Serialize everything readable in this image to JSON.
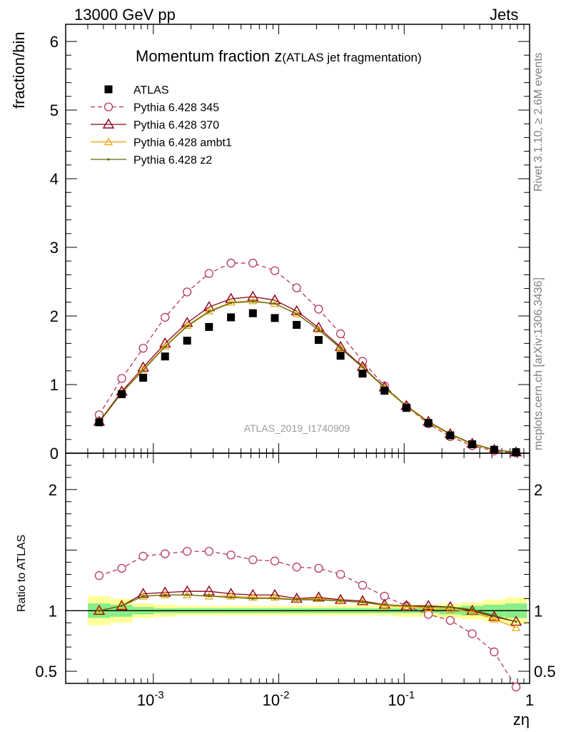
{
  "header": {
    "left": "13000 GeV pp",
    "right": "Jets"
  },
  "side_labels": {
    "rivet": "Rivet 3.1.10, ≥ 2.6M events",
    "mcplots": "mcplots.cern.ch [arXiv:1306.3436]"
  },
  "chart_data": {
    "type": "scatter",
    "title_main": "Momentum fraction z",
    "title_sub": "(ATLAS jet fragmentation)",
    "watermark": "ATLAS_2019_I1740909",
    "xlabel": "zη",
    "xscale": "log",
    "xlim": [
      0.0002,
      1
    ],
    "x_tick_labels": [
      "10^-3",
      "10^-2",
      "10^-1",
      "1"
    ],
    "main": {
      "ylabel": "fraction/bin",
      "ylim": [
        0,
        6.25
      ],
      "y_tick_labels": [
        "0",
        "1",
        "2",
        "3",
        "4",
        "5",
        "6"
      ]
    },
    "ratio": {
      "ylabel": "Ratio to ATLAS",
      "ylim": [
        0.4,
        2.3
      ],
      "y_tick_labels": [
        "0.5",
        "1",
        "2"
      ]
    },
    "x": [
      0.00037,
      0.00056,
      0.00083,
      0.00124,
      0.00186,
      0.00278,
      0.00416,
      0.00622,
      0.0093,
      0.0139,
      0.0208,
      0.0311,
      0.0466,
      0.0697,
      0.1042,
      0.156,
      0.233,
      0.349,
      0.522,
      0.78
    ],
    "reference": {
      "name": "ATLAS",
      "values": [
        0.45,
        0.86,
        1.1,
        1.41,
        1.64,
        1.84,
        1.98,
        2.04,
        1.97,
        1.87,
        1.65,
        1.42,
        1.16,
        0.91,
        0.66,
        0.44,
        0.26,
        0.13,
        0.05,
        0.015
      ],
      "band_inner": [
        0.06,
        0.05,
        0.03,
        0.02,
        0.02,
        0.02,
        0.02,
        0.02,
        0.02,
        0.02,
        0.02,
        0.02,
        0.02,
        0.02,
        0.02,
        0.02,
        0.03,
        0.04,
        0.05,
        0.06
      ],
      "band_outer": [
        0.12,
        0.1,
        0.06,
        0.05,
        0.04,
        0.04,
        0.04,
        0.04,
        0.04,
        0.04,
        0.04,
        0.04,
        0.04,
        0.04,
        0.05,
        0.05,
        0.06,
        0.07,
        0.09,
        0.11
      ]
    },
    "series": [
      {
        "name": "Pythia 6.428 345",
        "color": "#b5385a",
        "dash": true,
        "marker": "circle",
        "values": [
          0.56,
          1.09,
          1.53,
          1.98,
          2.35,
          2.62,
          2.77,
          2.77,
          2.66,
          2.41,
          2.1,
          1.74,
          1.34,
          0.98,
          0.68,
          0.43,
          0.24,
          0.11,
          0.033,
          0.0055
        ],
        "ratio": [
          1.29,
          1.35,
          1.45,
          1.47,
          1.49,
          1.49,
          1.46,
          1.42,
          1.41,
          1.36,
          1.35,
          1.3,
          1.21,
          1.12,
          1.04,
          0.97,
          0.92,
          0.81,
          0.66,
          0.37
        ]
      },
      {
        "name": "Pythia 6.428 370",
        "color": "#8b0018",
        "dash": false,
        "marker": "triangle",
        "values": [
          0.46,
          0.9,
          1.25,
          1.6,
          1.9,
          2.13,
          2.25,
          2.28,
          2.23,
          2.07,
          1.83,
          1.55,
          1.26,
          0.96,
          0.69,
          0.46,
          0.28,
          0.14,
          0.05,
          0.014
        ],
        "ratio": [
          1.0,
          1.04,
          1.14,
          1.15,
          1.16,
          1.16,
          1.14,
          1.13,
          1.13,
          1.1,
          1.11,
          1.09,
          1.08,
          1.05,
          1.04,
          1.04,
          1.03,
          1.0,
          0.95,
          0.91
        ]
      },
      {
        "name": "Pythia 6.428 ambt1",
        "color": "#f0a000",
        "dash": false,
        "marker": "triangle-small",
        "values": [
          0.45,
          0.88,
          1.22,
          1.56,
          1.86,
          2.07,
          2.2,
          2.22,
          2.18,
          2.03,
          1.8,
          1.53,
          1.25,
          0.95,
          0.68,
          0.45,
          0.27,
          0.13,
          0.047,
          0.013
        ],
        "ratio": [
          1.0,
          1.04,
          1.12,
          1.13,
          1.13,
          1.12,
          1.12,
          1.11,
          1.11,
          1.09,
          1.1,
          1.08,
          1.07,
          1.04,
          1.03,
          1.02,
          1.01,
          0.99,
          0.93,
          0.86
        ]
      },
      {
        "name": "Pythia 6.428 z2",
        "color": "#5a6a00",
        "dash": false,
        "marker": "dot",
        "values": [
          0.45,
          0.88,
          1.21,
          1.55,
          1.85,
          2.06,
          2.19,
          2.21,
          2.18,
          2.03,
          1.8,
          1.53,
          1.25,
          0.96,
          0.69,
          0.46,
          0.28,
          0.14,
          0.05,
          0.014
        ],
        "ratio": [
          1.0,
          1.04,
          1.12,
          1.13,
          1.13,
          1.12,
          1.11,
          1.1,
          1.1,
          1.09,
          1.09,
          1.08,
          1.07,
          1.05,
          1.04,
          1.03,
          1.03,
          1.01,
          0.96,
          0.91
        ]
      }
    ]
  }
}
